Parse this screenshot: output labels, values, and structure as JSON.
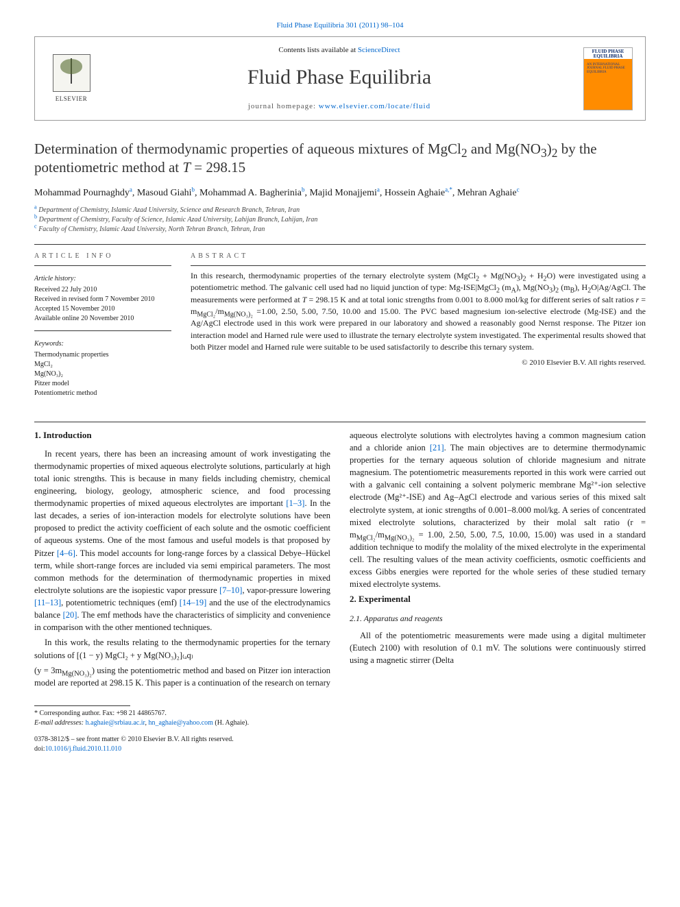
{
  "top_link": {
    "journal": "Fluid Phase Equilibria 301 (2011) 98–104"
  },
  "header": {
    "lists_prefix": "Contents lists available at ",
    "lists_link": "ScienceDirect",
    "journal_name": "Fluid Phase Equilibria",
    "homepage_prefix": "journal homepage: ",
    "homepage_url": "www.elsevier.com/locate/fluid",
    "publisher_label": "ELSEVIER",
    "cover_title": "FLUID PHASE EQUILIBRIA",
    "cover_sub": "AN INTERNATIONAL JOURNAL\nFLUID PHASE\nEQUILIBRIA"
  },
  "title": {
    "line1": "Determination of thermodynamic properties of aqueous mixtures of MgCl",
    "sub1": "2",
    "mid1": " and Mg(NO",
    "sub2": "3",
    "mid2": ")",
    "sub3": "2",
    "mid3": " by the potentiometric method at ",
    "ital": "T",
    "tail": " = 298.15"
  },
  "authors": [
    {
      "name": "Mohammad Pournaghdy",
      "aff": "a"
    },
    {
      "name": "Masoud Giahi",
      "aff": "b"
    },
    {
      "name": "Mohammad A. Bagherinia",
      "aff": "b"
    },
    {
      "name": "Majid Monajjemi",
      "aff": "a"
    },
    {
      "name": "Hossein Aghaie",
      "aff": "a,*"
    },
    {
      "name": "Mehran Aghaie",
      "aff": "c"
    }
  ],
  "affiliations": [
    {
      "mark": "a",
      "text": "Department of Chemistry, Islamic Azad University, Science and Research Branch, Tehran, Iran"
    },
    {
      "mark": "b",
      "text": "Department of Chemistry, Faculty of Science, Islamic Azad University, Lahijan Branch, Lahijan, Iran"
    },
    {
      "mark": "c",
      "text": "Faculty of Chemistry, Islamic Azad University, North Tehran Branch, Tehran, Iran"
    }
  ],
  "article_info": {
    "head": "ARTICLE INFO",
    "history_label": "Article history:",
    "received": "Received 22 July 2010",
    "revised": "Received in revised form 7 November 2010",
    "accepted": "Accepted 15 November 2010",
    "online": "Available online 20 November 2010",
    "keywords_label": "Keywords:",
    "keywords": [
      "Thermodynamic properties",
      "MgCl₂",
      "Mg(NO₃)₂",
      "Pitzer model",
      "Potentiometric method"
    ]
  },
  "abstract": {
    "head": "ABSTRACT",
    "body_parts": {
      "p1a": "In this research, thermodynamic properties of the ternary electrolyte system (MgCl",
      "p1b": " + Mg(NO",
      "p1c": ")",
      "p1d": " + H",
      "p1e": "O) were investigated using a potentiometric method. The galvanic cell used had no liquid junction of type: Mg-ISE|MgCl",
      "p1f": " (m",
      "p1g": "), Mg(NO",
      "p1h": ")",
      "p1i": " (m",
      "p1j": "), H",
      "p1k": "O|Ag/AgCl. The measurements were performed at ",
      "p1l": " = 298.15 K and at total ionic strengths from 0.001 to 8.000 mol/kg for different series of salt ratios ",
      "p1m": " = m",
      "p1n": "/m",
      "p1o": " =1.00, 2.50, 5.00, 7.50, 10.00 and 15.00. The PVC based magnesium ion-selective electrode (Mg-ISE) and the Ag/AgCl electrode used in this work were prepared in our laboratory and showed a reasonably good Nernst response. The Pitzer ion interaction model and Harned rule were used to illustrate the ternary electrolyte system investigated. The experimental results showed that both Pitzer model and Harned rule were suitable to be used satisfactorily to describe this ternary system."
    },
    "copyright": "© 2010 Elsevier B.V. All rights reserved."
  },
  "sections": {
    "intro_head": "1. Introduction",
    "intro_p1a": "In recent years, there has been an increasing amount of work investigating the thermodynamic properties of mixed aqueous electrolyte solutions, particularly at high total ionic strengths. This is because in many fields including chemistry, chemical engineering, biology, geology, atmospheric science, and food processing thermodynamic properties of mixed aqueous electrolytes are important ",
    "ref_1_3": "[1–3]",
    "intro_p1b": ". In the last decades, a series of ion-interaction models for electrolyte solutions have been proposed to predict the activity coefficient of each solute and the osmotic coefficient of aqueous systems. One of the most famous and useful models is that proposed by Pitzer ",
    "ref_4_6": "[4–6]",
    "intro_p1c": ". This model accounts for long-range forces by a classical Debye–Hückel term, while short-range forces are included via semi empirical parameters. The most common methods for the determination of thermodynamic properties in mixed electrolyte solutions are the isopiestic vapor pressure ",
    "ref_7_10": "[7–10]",
    "intro_p1d": ", vapor-pressure lowering ",
    "ref_11_13": "[11–13]",
    "intro_p1e": ", potentiometric techniques (emf) ",
    "ref_14_19": "[14–19]",
    "intro_p1f": " and the use of the electrodynamics balance ",
    "ref_20": "[20]",
    "intro_p1g": ". The emf methods have the characteristics of simplicity and convenience in comparison with the other mentioned techniques.",
    "intro_p2": "In this work, the results relating to the thermodynamic properties for the ternary solutions of [(1 − y) MgCl₂ + y Mg(NO₃)₂]₍ₐq₎",
    "col2_top_a": "(y = 3m",
    "col2_top_b": ") using the potentiometric method and based on Pitzer ion interaction model are reported at 298.15 K. This paper is a continuation of the research on ternary aqueous electrolyte solutions with electrolytes having a common magnesium cation and a chloride anion ",
    "ref_21": "[21]",
    "col2_top_c": ". The main objectives are to determine thermodynamic properties for the ternary aqueous solution of chloride magnesium and nitrate magnesium. The potentiometric measurements reported in this work were carried out with a galvanic cell containing a solvent polymeric membrane Mg²⁺-ion selective electrode (Mg²⁺-ISE) and Ag–AgCl electrode and various series of this mixed salt electrolyte system, at ionic strengths of 0.001–8.000 mol/kg. A series of concentrated mixed electrolyte solutions, characterized by their molal salt ratio (r = m",
    "col2_top_d": "/m",
    "col2_top_e": " = 1.00, 2.50, 5.00, 7.5, 10.00, 15.00) was used in a standard addition technique to modify the molality of the mixed electrolyte in the experimental cell. The resulting values of the mean activity coefficients, osmotic coefficients and excess Gibbs energies were reported for the whole series of these studied ternary mixed electrolyte systems.",
    "exp_head": "2. Experimental",
    "exp_sub": "2.1. Apparatus and reagents",
    "exp_p1": "All of the potentiometric measurements were made using a digital multimeter (Eutech 2100) with resolution of 0.1 mV. The solutions were continuously stirred using a magnetic stirrer (Delta"
  },
  "footer": {
    "corr": "* Corresponding author. Fax: +98 21 44865767.",
    "email_label": "E-mail addresses: ",
    "email1": "h.aghaie@srbiau.ac.ir",
    "email_sep": ", ",
    "email2": "hn_aghaie@yahoo.com",
    "email_tail": " (H. Aghaie).",
    "issn": "0378-3812/$ – see front matter © 2010 Elsevier B.V. All rights reserved.",
    "doi_label": "doi:",
    "doi": "10.1016/j.fluid.2010.11.010"
  },
  "colors": {
    "link": "#0066cc",
    "text": "#1a1a1a",
    "rule": "#333333"
  }
}
